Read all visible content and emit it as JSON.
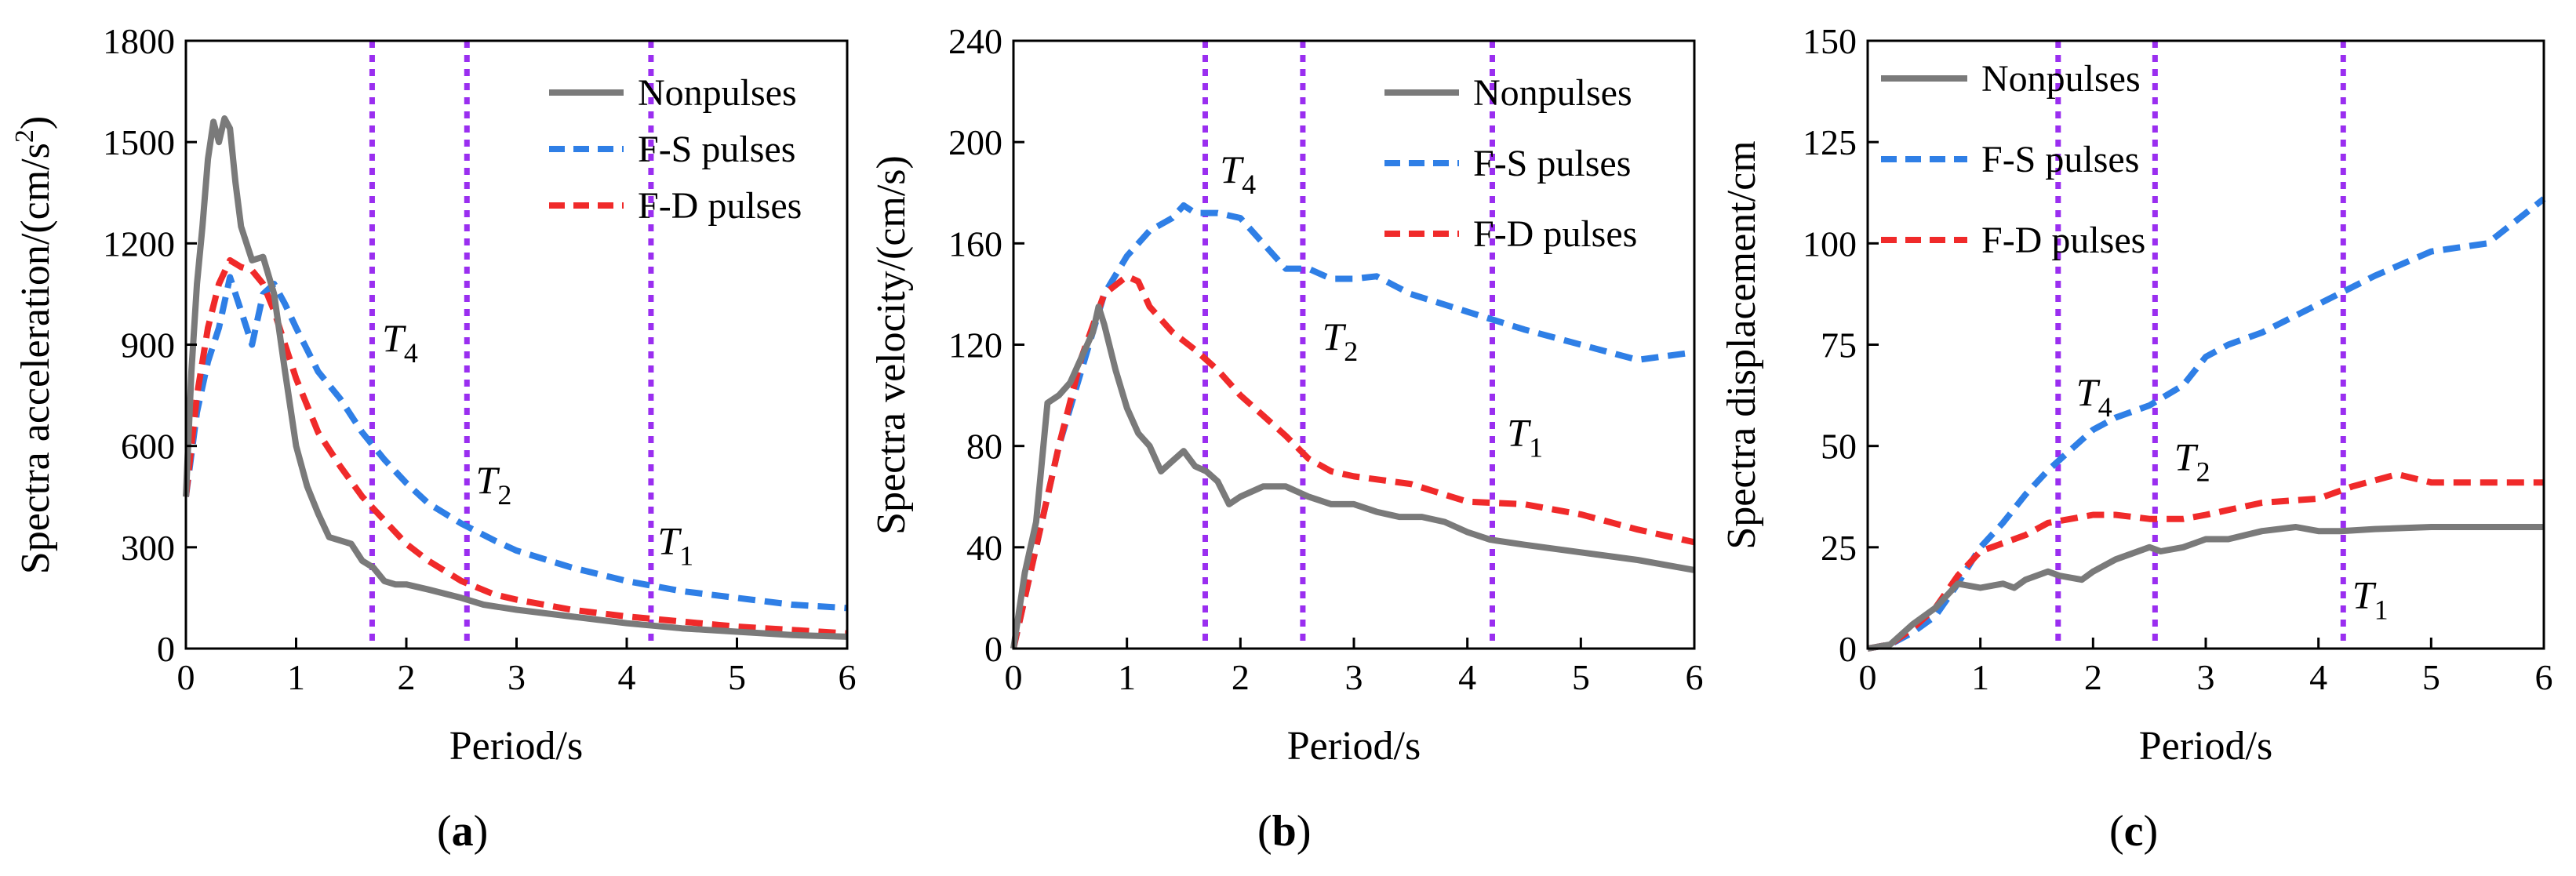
{
  "figure": {
    "vlines": [
      {
        "name": "T4",
        "x": 1.69
      },
      {
        "name": "T2",
        "x": 2.55
      },
      {
        "name": "T1",
        "x": 4.22
      }
    ],
    "legend_entries": [
      "Nonpulses",
      "F-S pulses",
      "F-D pulses"
    ],
    "colors": {
      "nonpulses": "#7a7a7a",
      "fs": "#2f7fe6",
      "fd": "#f02a2a",
      "vline": "#9a2ef0"
    }
  },
  "chart_data": [
    {
      "type": "line",
      "panel_label": "(a)",
      "panel_letter": "a",
      "xlabel": "Period/s",
      "ylabel": "Spectra acceleration/(cm/s",
      "ylabel_sup": "2",
      "ylabel_end": ")",
      "xlim": [
        0,
        6
      ],
      "ylim": [
        0,
        1800
      ],
      "xticks": [
        0,
        1,
        2,
        3,
        4,
        5,
        6
      ],
      "yticks": [
        0,
        300,
        600,
        900,
        1200,
        1500,
        1800
      ],
      "legend_position": "top-right",
      "tmarks": [
        {
          "main": "T",
          "sub": "4",
          "x": 1.78,
          "y": 880
        },
        {
          "main": "T",
          "sub": "2",
          "x": 2.63,
          "y": 460
        },
        {
          "main": "T",
          "sub": "1",
          "x": 4.28,
          "y": 280
        }
      ],
      "series": [
        {
          "name": "Nonpulses",
          "key": "nonpulses",
          "x": [
            0,
            0.05,
            0.1,
            0.15,
            0.2,
            0.25,
            0.3,
            0.35,
            0.4,
            0.45,
            0.5,
            0.6,
            0.7,
            0.8,
            0.9,
            1.0,
            1.1,
            1.2,
            1.3,
            1.4,
            1.5,
            1.6,
            1.7,
            1.8,
            1.9,
            2.0,
            2.2,
            2.5,
            2.7,
            3.0,
            3.5,
            4.0,
            4.5,
            5.0,
            5.5,
            6.0
          ],
          "values": [
            450,
            820,
            1080,
            1250,
            1450,
            1560,
            1500,
            1570,
            1540,
            1380,
            1250,
            1150,
            1160,
            1050,
            820,
            600,
            480,
            400,
            330,
            320,
            310,
            260,
            240,
            200,
            190,
            190,
            175,
            150,
            130,
            115,
            95,
            75,
            60,
            50,
            40,
            35
          ]
        },
        {
          "name": "F-S pulses",
          "key": "fs",
          "x": [
            0,
            0.1,
            0.2,
            0.3,
            0.4,
            0.5,
            0.6,
            0.7,
            0.8,
            0.9,
            1.0,
            1.2,
            1.4,
            1.6,
            1.8,
            2.0,
            2.2,
            2.5,
            2.8,
            3.0,
            3.5,
            4.0,
            4.5,
            5.0,
            5.5,
            6.0
          ],
          "values": [
            450,
            700,
            850,
            950,
            1100,
            1000,
            900,
            1050,
            1080,
            1020,
            950,
            820,
            740,
            640,
            560,
            490,
            430,
            370,
            320,
            290,
            240,
            200,
            170,
            150,
            130,
            120
          ]
        },
        {
          "name": "F-D pulses",
          "key": "fd",
          "x": [
            0,
            0.1,
            0.2,
            0.3,
            0.4,
            0.5,
            0.6,
            0.7,
            0.8,
            0.9,
            1.0,
            1.2,
            1.4,
            1.6,
            1.8,
            2.0,
            2.2,
            2.5,
            2.8,
            3.0,
            3.5,
            4.0,
            4.5,
            5.0,
            5.5,
            6.0
          ],
          "values": [
            450,
            750,
            950,
            1080,
            1150,
            1130,
            1120,
            1080,
            1000,
            900,
            800,
            640,
            540,
            450,
            380,
            310,
            260,
            200,
            160,
            145,
            115,
            95,
            80,
            65,
            55,
            45
          ]
        }
      ]
    },
    {
      "type": "line",
      "panel_label": "(b)",
      "panel_letter": "b",
      "xlabel": "Period/s",
      "ylabel": "Spectra velocity/(cm/s)",
      "ylabel_sup": "",
      "ylabel_end": "",
      "xlim": [
        0,
        6
      ],
      "ylim": [
        0,
        240
      ],
      "xticks": [
        0,
        1,
        2,
        3,
        4,
        5,
        6
      ],
      "yticks": [
        0,
        40,
        80,
        120,
        160,
        200,
        240
      ],
      "legend_position": "top-right",
      "tmarks": [
        {
          "main": "T",
          "sub": "4",
          "x": 1.82,
          "y": 184
        },
        {
          "main": "T",
          "sub": "2",
          "x": 2.72,
          "y": 118
        },
        {
          "main": "T",
          "sub": "1",
          "x": 4.35,
          "y": 80
        }
      ],
      "series": [
        {
          "name": "Nonpulses",
          "key": "nonpulses",
          "x": [
            0,
            0.1,
            0.2,
            0.3,
            0.4,
            0.5,
            0.6,
            0.7,
            0.75,
            0.8,
            0.9,
            1.0,
            1.1,
            1.2,
            1.3,
            1.4,
            1.5,
            1.6,
            1.7,
            1.8,
            1.9,
            2.0,
            2.2,
            2.4,
            2.6,
            2.8,
            3.0,
            3.2,
            3.4,
            3.6,
            3.8,
            4.0,
            4.2,
            4.5,
            5.0,
            5.5,
            6.0
          ],
          "values": [
            0,
            30,
            50,
            97,
            100,
            105,
            115,
            125,
            135,
            128,
            110,
            95,
            85,
            80,
            70,
            74,
            78,
            72,
            70,
            66,
            57,
            60,
            64,
            64,
            60,
            57,
            57,
            54,
            52,
            52,
            50,
            46,
            43,
            41,
            38,
            35,
            31
          ]
        },
        {
          "name": "F-S pulses",
          "key": "fs",
          "x": [
            0,
            0.2,
            0.4,
            0.6,
            0.8,
            1.0,
            1.2,
            1.4,
            1.5,
            1.6,
            1.8,
            2.0,
            2.2,
            2.4,
            2.6,
            2.8,
            3.0,
            3.2,
            3.5,
            4.0,
            4.5,
            5.0,
            5.5,
            6.0
          ],
          "values": [
            0,
            40,
            80,
            110,
            140,
            155,
            165,
            170,
            175,
            172,
            172,
            170,
            160,
            150,
            150,
            146,
            146,
            147,
            140,
            133,
            126,
            120,
            114,
            117
          ]
        },
        {
          "name": "F-D pulses",
          "key": "fd",
          "x": [
            0,
            0.2,
            0.4,
            0.6,
            0.8,
            1.0,
            1.1,
            1.2,
            1.4,
            1.6,
            1.8,
            2.0,
            2.2,
            2.4,
            2.6,
            2.8,
            3.0,
            3.5,
            4.0,
            4.5,
            5.0,
            5.5,
            6.0
          ],
          "values": [
            0,
            40,
            80,
            115,
            140,
            147,
            145,
            135,
            125,
            118,
            110,
            100,
            92,
            84,
            75,
            70,
            68,
            65,
            58,
            57,
            53,
            47,
            42
          ]
        }
      ]
    },
    {
      "type": "line",
      "panel_label": "(c)",
      "panel_letter": "c",
      "xlabel": "Period/s",
      "ylabel": "Spectra displacement/cm",
      "ylabel_sup": "",
      "ylabel_end": "",
      "xlim": [
        0,
        6
      ],
      "ylim": [
        0,
        150
      ],
      "xticks": [
        0,
        1,
        2,
        3,
        4,
        5,
        6
      ],
      "yticks": [
        0,
        25,
        50,
        75,
        100,
        125,
        150
      ],
      "legend_position": "top-left",
      "tmarks": [
        {
          "main": "T",
          "sub": "4",
          "x": 1.85,
          "y": 60
        },
        {
          "main": "T",
          "sub": "2",
          "x": 2.72,
          "y": 44
        },
        {
          "main": "T",
          "sub": "1",
          "x": 4.3,
          "y": 10
        }
      ],
      "series": [
        {
          "name": "Nonpulses",
          "key": "nonpulses",
          "x": [
            0,
            0.2,
            0.4,
            0.6,
            0.8,
            1.0,
            1.2,
            1.3,
            1.4,
            1.6,
            1.7,
            1.9,
            2.0,
            2.2,
            2.5,
            2.6,
            2.8,
            3.0,
            3.2,
            3.5,
            3.8,
            4.0,
            4.2,
            4.5,
            5.0,
            5.5,
            6.0
          ],
          "values": [
            0,
            1,
            6,
            10,
            16,
            15,
            16,
            15,
            17,
            19,
            18,
            17,
            19,
            22,
            25,
            24,
            25,
            27,
            27,
            29,
            30,
            29,
            29,
            29.5,
            30,
            30,
            30
          ]
        },
        {
          "name": "F-S pulses",
          "key": "fs",
          "x": [
            0,
            0.2,
            0.4,
            0.6,
            0.8,
            1.0,
            1.2,
            1.4,
            1.6,
            1.8,
            2.0,
            2.2,
            2.5,
            2.8,
            3.0,
            3.2,
            3.5,
            4.0,
            4.5,
            5.0,
            5.5,
            6.0
          ],
          "values": [
            0,
            1,
            4,
            8,
            16,
            25,
            31,
            38,
            44,
            49,
            54,
            57,
            60,
            65,
            72,
            75,
            78,
            85,
            92,
            98,
            100,
            111
          ]
        },
        {
          "name": "F-D pulses",
          "key": "fd",
          "x": [
            0,
            0.2,
            0.4,
            0.6,
            0.8,
            1.0,
            1.2,
            1.4,
            1.6,
            1.8,
            2.0,
            2.2,
            2.5,
            2.8,
            3.0,
            3.5,
            4.0,
            4.3,
            4.7,
            5.0,
            5.5,
            6.0
          ],
          "values": [
            0,
            1,
            5,
            10,
            18,
            24,
            26,
            28,
            31,
            32,
            33,
            33,
            32,
            32,
            33,
            36,
            37,
            40,
            43,
            41,
            41,
            41
          ]
        }
      ]
    }
  ]
}
